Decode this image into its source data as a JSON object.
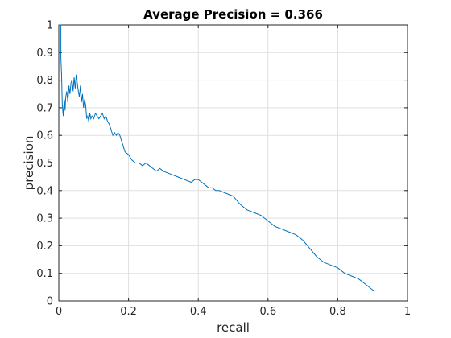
{
  "chart_data": {
    "type": "line",
    "title": "Average Precision = 0.366",
    "xlabel": "recall",
    "ylabel": "precision",
    "xlim": [
      0,
      1
    ],
    "ylim": [
      0,
      1
    ],
    "xticks": [
      0,
      0.2,
      0.4,
      0.6,
      0.8,
      1
    ],
    "xtick_labels": [
      "0",
      "0.2",
      "0.4",
      "0.6",
      "0.8",
      "1"
    ],
    "yticks": [
      0,
      0.1,
      0.2,
      0.3,
      0.4,
      0.5,
      0.6,
      0.7,
      0.8,
      0.9,
      1
    ],
    "ytick_labels": [
      "0",
      "0.1",
      "0.2",
      "0.3",
      "0.4",
      "0.5",
      "0.6",
      "0.7",
      "0.8",
      "0.9",
      "1"
    ],
    "grid": true,
    "series": [
      {
        "color": "#0072bd",
        "x": [
          0,
          0.003,
          0.006,
          0.006,
          0.008,
          0.01,
          0.012,
          0.013,
          0.014,
          0.016,
          0.018,
          0.02,
          0.023,
          0.026,
          0.029,
          0.032,
          0.035,
          0.038,
          0.041,
          0.044,
          0.047,
          0.05,
          0.053,
          0.056,
          0.059,
          0.062,
          0.065,
          0.068,
          0.071,
          0.074,
          0.077,
          0.08,
          0.083,
          0.086,
          0.089,
          0.092,
          0.095,
          0.1,
          0.105,
          0.11,
          0.115,
          0.12,
          0.125,
          0.13,
          0.135,
          0.14,
          0.145,
          0.15,
          0.155,
          0.16,
          0.165,
          0.17,
          0.175,
          0.18,
          0.185,
          0.19,
          0.2,
          0.21,
          0.22,
          0.23,
          0.24,
          0.25,
          0.26,
          0.27,
          0.28,
          0.29,
          0.3,
          0.32,
          0.34,
          0.36,
          0.38,
          0.39,
          0.4,
          0.41,
          0.42,
          0.43,
          0.44,
          0.45,
          0.46,
          0.48,
          0.5,
          0.52,
          0.54,
          0.56,
          0.58,
          0.6,
          0.62,
          0.64,
          0.66,
          0.68,
          0.7,
          0.72,
          0.74,
          0.76,
          0.78,
          0.8,
          0.82,
          0.84,
          0.86,
          0.88,
          0.9,
          0.905
        ],
        "y": [
          1,
          1,
          1,
          0.88,
          0.82,
          0.71,
          0.68,
          0.67,
          0.7,
          0.73,
          0.69,
          0.74,
          0.76,
          0.72,
          0.78,
          0.75,
          0.79,
          0.8,
          0.76,
          0.81,
          0.77,
          0.82,
          0.79,
          0.76,
          0.74,
          0.78,
          0.72,
          0.75,
          0.7,
          0.73,
          0.71,
          0.66,
          0.67,
          0.65,
          0.68,
          0.66,
          0.67,
          0.66,
          0.68,
          0.67,
          0.66,
          0.67,
          0.68,
          0.66,
          0.67,
          0.65,
          0.64,
          0.62,
          0.6,
          0.61,
          0.6,
          0.61,
          0.6,
          0.58,
          0.56,
          0.54,
          0.53,
          0.51,
          0.5,
          0.5,
          0.49,
          0.5,
          0.49,
          0.48,
          0.47,
          0.48,
          0.47,
          0.46,
          0.45,
          0.44,
          0.43,
          0.44,
          0.44,
          0.43,
          0.42,
          0.41,
          0.41,
          0.4,
          0.4,
          0.39,
          0.38,
          0.35,
          0.33,
          0.32,
          0.31,
          0.29,
          0.27,
          0.26,
          0.25,
          0.24,
          0.22,
          0.19,
          0.16,
          0.14,
          0.13,
          0.12,
          0.1,
          0.09,
          0.08,
          0.06,
          0.04,
          0.035
        ]
      }
    ]
  }
}
